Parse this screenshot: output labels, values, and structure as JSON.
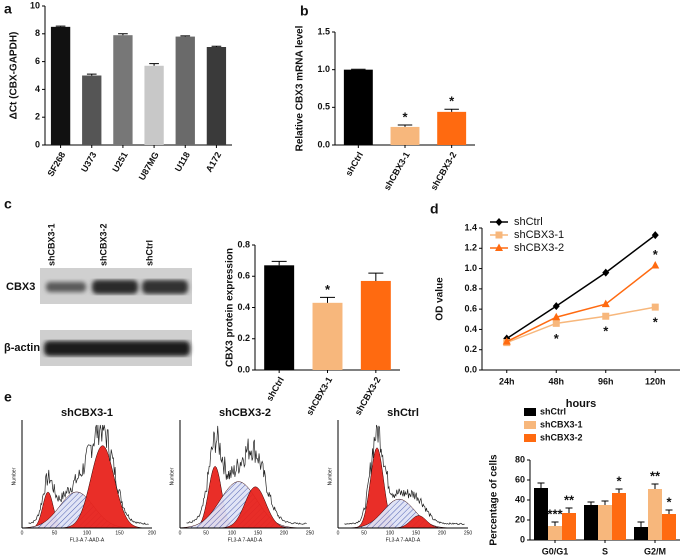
{
  "panel_labels": [
    "a",
    "b",
    "c",
    "d",
    "e"
  ],
  "blot": {
    "lanes": [
      "shCBX3-1",
      "shCBX3-2",
      "shCtrl"
    ],
    "rows": [
      "CBX3",
      "β-actin"
    ]
  },
  "flow": {
    "titles": [
      "shCBX3-1",
      "shCBX3-2",
      "shCtrl"
    ],
    "x_label": "FL3-A 7-AAD-A",
    "y_label": "Number",
    "xticks": [
      [
        0,
        50,
        100,
        150,
        200
      ],
      [
        0,
        50,
        100,
        150,
        200,
        250
      ],
      [
        0,
        50,
        100,
        150,
        200,
        250
      ]
    ]
  },
  "chart_data": [
    {
      "type": "bar",
      "y_label": "ΔCt (CBX-GAPDH)",
      "categories": [
        "SF268",
        "U373",
        "U251",
        "U87MG",
        "U118",
        "A172"
      ],
      "values": [
        8.5,
        5.0,
        7.9,
        5.7,
        7.8,
        7.05
      ],
      "errors": [
        0.05,
        0.1,
        0.1,
        0.15,
        0.05,
        0.05
      ],
      "colors": [
        "#111111",
        "#555555",
        "#777777",
        "#c8c8c8",
        "#6a6a6a",
        "#3a3a3a"
      ],
      "ylim": [
        0,
        10
      ],
      "yticks": [
        0,
        2,
        4,
        6,
        8,
        10
      ]
    },
    {
      "type": "bar",
      "y_label": "Relative  CBX3 mRNA level",
      "categories": [
        "shCtrl",
        "shCBX3-1",
        "shCBX3-2"
      ],
      "values": [
        1.0,
        0.24,
        0.44
      ],
      "errors": [
        0.005,
        0.025,
        0.035
      ],
      "colors": [
        "#000000",
        "#f7b77c",
        "#ff6a10"
      ],
      "value_annotations": [
        null,
        "*",
        "*"
      ],
      "ylim": [
        0,
        1.5
      ],
      "yticks": [
        {
          "value": 0,
          "label": "0.0"
        },
        0.5,
        {
          "value": 1,
          "label": "1.0"
        },
        1.5
      ]
    },
    {
      "type": "bar",
      "y_label": "CBX3 protein expression",
      "categories": [
        "shCtrl",
        "shCBX3-1",
        "shCBX3-2"
      ],
      "values": [
        0.67,
        0.43,
        0.57
      ],
      "errors": [
        0.025,
        0.035,
        0.05
      ],
      "colors": [
        "#000000",
        "#f7b77c",
        "#ff6a10"
      ],
      "value_annotations": [
        null,
        "*",
        null
      ],
      "ylim": [
        0,
        0.8
      ],
      "yticks": [
        {
          "value": 0,
          "label": "0.0"
        },
        0.2,
        0.4,
        0.6,
        0.8
      ]
    },
    {
      "type": "line",
      "y_label": "OD value",
      "x_label": "hours",
      "categories": [
        "24h",
        "48h",
        "96h",
        "120h"
      ],
      "series": [
        {
          "name": "shCtrl",
          "color": "#000000",
          "marker": "diamond",
          "values": [
            0.31,
            0.63,
            0.96,
            1.33
          ]
        },
        {
          "name": "shCBX3-1",
          "color": "#f7b77c",
          "marker": "square",
          "values": [
            0.27,
            0.46,
            0.53,
            0.62
          ],
          "value_annotations": [
            null,
            "*",
            "*",
            "*"
          ]
        },
        {
          "name": "shCBX3-2",
          "color": "#ff6a10",
          "marker": "triangle",
          "values": [
            0.28,
            0.52,
            0.65,
            1.03
          ],
          "value_annotations": [
            null,
            null,
            null,
            "*"
          ]
        }
      ],
      "ylim": [
        0,
        1.4
      ],
      "yticks": [
        {
          "value": 0,
          "label": "0.0"
        },
        0.2,
        0.4,
        0.6,
        0.8,
        {
          "value": 1,
          "label": "1.0"
        },
        1.2,
        1.4
      ],
      "legend": "top-left"
    },
    {
      "type": "bar",
      "y_label": "Percentage of cells",
      "categories": [
        "G0/G1",
        "S",
        "G2/M"
      ],
      "series": [
        {
          "name": "shCtrl",
          "color": "#000000",
          "values": [
            52,
            35,
            13
          ],
          "errors": [
            5,
            3,
            5
          ]
        },
        {
          "name": "shCBX3-1",
          "color": "#f7b77c",
          "values": [
            14,
            35,
            51
          ],
          "errors": [
            4,
            4,
            5
          ],
          "value_annotations": [
            "***",
            null,
            "**"
          ]
        },
        {
          "name": "shCBX3-2",
          "color": "#ff6a10",
          "values": [
            27,
            47,
            26
          ],
          "errors": [
            5,
            4,
            4
          ],
          "value_annotations": [
            "**",
            "*",
            "*"
          ]
        }
      ],
      "ylim": [
        0,
        80
      ],
      "yticks": [
        0,
        20,
        40,
        60,
        80
      ],
      "legend": "top-left"
    }
  ]
}
